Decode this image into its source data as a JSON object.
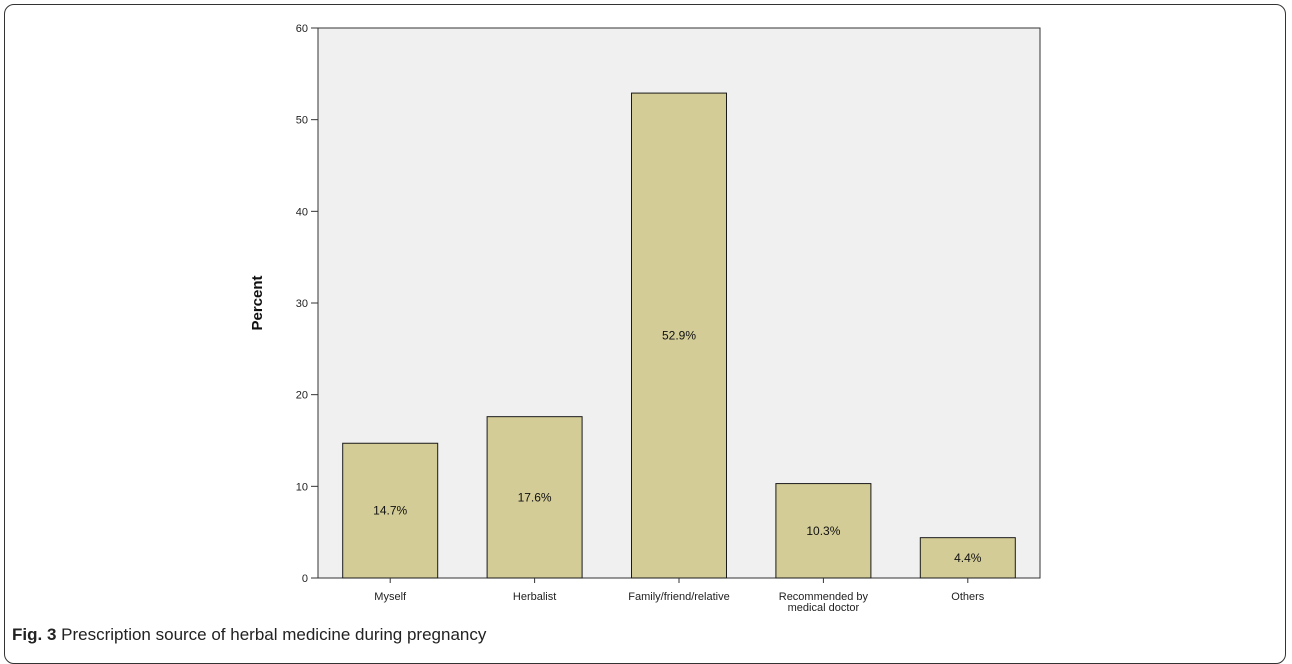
{
  "chart_data": {
    "type": "bar",
    "categories": [
      [
        "Myself"
      ],
      [
        "Herbalist"
      ],
      [
        "Family/friend/relative"
      ],
      [
        "Recommended by",
        "medical doctor"
      ],
      [
        "Others"
      ]
    ],
    "values": [
      14.7,
      17.6,
      52.9,
      10.3,
      4.4
    ],
    "data_labels": [
      "14.7%",
      "17.6%",
      "52.9%",
      "10.3%",
      "4.4%"
    ],
    "ylabel": "Percent",
    "xlabel": "",
    "ylim": [
      0,
      60
    ],
    "yticks": [
      0,
      10,
      20,
      30,
      40,
      50,
      60
    ],
    "grid": false,
    "colors": {
      "bar": "#d3cc96",
      "bar_edge": "#1a1a1a",
      "plot_bg": "#f0f0f0"
    }
  },
  "caption": {
    "figure_label": "Fig. 3",
    "text": " Prescription source of herbal medicine during pregnancy"
  }
}
